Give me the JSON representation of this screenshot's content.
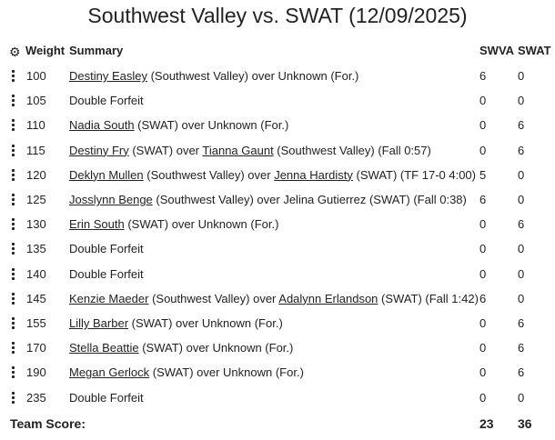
{
  "title": "Southwest Valley vs. SWAT (12/09/2025)",
  "header": {
    "weight": "Weight",
    "summary": "Summary",
    "team_a": "SWVA",
    "team_b": "SWAT",
    "settings_icon": "gear-icon"
  },
  "bouts": [
    {
      "weight": "100",
      "summary": [
        {
          "text": "Destiny Easley",
          "link": true
        },
        {
          "text": " (Southwest Valley) over Unknown (For.)"
        }
      ],
      "a": "6",
      "b": "0"
    },
    {
      "weight": "105",
      "summary": [
        {
          "text": "Double Forfeit"
        }
      ],
      "a": "0",
      "b": "0"
    },
    {
      "weight": "110",
      "summary": [
        {
          "text": "Nadia South",
          "link": true
        },
        {
          "text": " (SWAT) over Unknown (For.)"
        }
      ],
      "a": "0",
      "b": "6"
    },
    {
      "weight": "115",
      "summary": [
        {
          "text": "Destiny Fry",
          "link": true
        },
        {
          "text": " (SWAT) over "
        },
        {
          "text": "Tianna Gaunt",
          "link": true
        },
        {
          "text": " (Southwest Valley) (Fall 0:57)"
        }
      ],
      "a": "0",
      "b": "6"
    },
    {
      "weight": "120",
      "summary": [
        {
          "text": "Deklyn Mullen",
          "link": true
        },
        {
          "text": " (Southwest Valley) over "
        },
        {
          "text": "Jenna Hardisty",
          "link": true
        },
        {
          "text": " (SWAT) (TF 17-0 4:00)"
        }
      ],
      "a": "5",
      "b": "0"
    },
    {
      "weight": "125",
      "summary": [
        {
          "text": "Josslynn Benge",
          "link": true
        },
        {
          "text": " (Southwest Valley) over Jelina Gutierrez (SWAT) (Fall 0:38)"
        }
      ],
      "a": "6",
      "b": "0"
    },
    {
      "weight": "130",
      "summary": [
        {
          "text": "Erin South",
          "link": true
        },
        {
          "text": " (SWAT) over Unknown (For.)"
        }
      ],
      "a": "0",
      "b": "6"
    },
    {
      "weight": "135",
      "summary": [
        {
          "text": "Double Forfeit"
        }
      ],
      "a": "0",
      "b": "0"
    },
    {
      "weight": "140",
      "summary": [
        {
          "text": "Double Forfeit"
        }
      ],
      "a": "0",
      "b": "0"
    },
    {
      "weight": "145",
      "summary": [
        {
          "text": "Kenzie Maeder",
          "link": true
        },
        {
          "text": " (Southwest Valley) over "
        },
        {
          "text": "Adalynn Erlandson",
          "link": true
        },
        {
          "text": " (SWAT) (Fall 1:42)"
        }
      ],
      "a": "6",
      "b": "0"
    },
    {
      "weight": "155",
      "summary": [
        {
          "text": "Lilly Barber",
          "link": true
        },
        {
          "text": " (SWAT) over Unknown (For.)"
        }
      ],
      "a": "0",
      "b": "6"
    },
    {
      "weight": "170",
      "summary": [
        {
          "text": "Stella Beattie",
          "link": true
        },
        {
          "text": " (SWAT) over Unknown (For.)"
        }
      ],
      "a": "0",
      "b": "6"
    },
    {
      "weight": "190",
      "summary": [
        {
          "text": "Megan Gerlock",
          "link": true
        },
        {
          "text": " (SWAT) over Unknown (For.)"
        }
      ],
      "a": "0",
      "b": "6"
    },
    {
      "weight": "235",
      "summary": [
        {
          "text": "Double Forfeit"
        }
      ],
      "a": "0",
      "b": "0"
    }
  ],
  "team_score": {
    "label": "Team Score:",
    "a": "23",
    "b": "36"
  }
}
